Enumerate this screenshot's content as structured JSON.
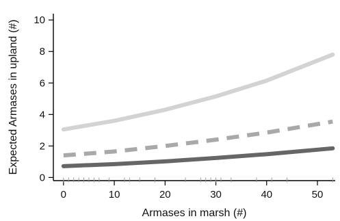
{
  "chart_data": {
    "type": "line",
    "title": "",
    "xlabel": "Armases in marsh (#)",
    "ylabel": "Expected Armases in upland (#)",
    "xlim": [
      -2,
      53.5
    ],
    "ylim": [
      -0.2,
      10.4
    ],
    "xticks": [
      0,
      10,
      20,
      30,
      40,
      50
    ],
    "yticks": [
      0,
      2,
      4,
      6,
      8,
      10
    ],
    "xtick_labels": [
      "0",
      "10",
      "20",
      "30",
      "40",
      "50"
    ],
    "ytick_labels": [
      "0",
      "2",
      "4",
      "6",
      "8",
      "10"
    ],
    "grid": false,
    "legend": "none",
    "series": [
      {
        "color": "#d3d3d3",
        "style": "solid",
        "x": [
          0,
          10,
          20,
          30,
          40,
          53
        ],
        "y": [
          3.05,
          3.6,
          4.3,
          5.15,
          6.15,
          7.8
        ]
      },
      {
        "color": "#a9a9a9",
        "style": "dashed",
        "x": [
          0,
          10,
          20,
          30,
          40,
          53
        ],
        "y": [
          1.4,
          1.65,
          2.0,
          2.4,
          2.85,
          3.55
        ]
      },
      {
        "color": "#666666",
        "style": "solid",
        "x": [
          0,
          10,
          20,
          30,
          40,
          53
        ],
        "y": [
          0.72,
          0.85,
          1.02,
          1.24,
          1.48,
          1.85
        ]
      }
    ],
    "rug": [
      0,
      1,
      2,
      3,
      4,
      5,
      6,
      7,
      9,
      12,
      13,
      15,
      18,
      24,
      27,
      28,
      29,
      30,
      31,
      33,
      38,
      41,
      44,
      53
    ]
  }
}
